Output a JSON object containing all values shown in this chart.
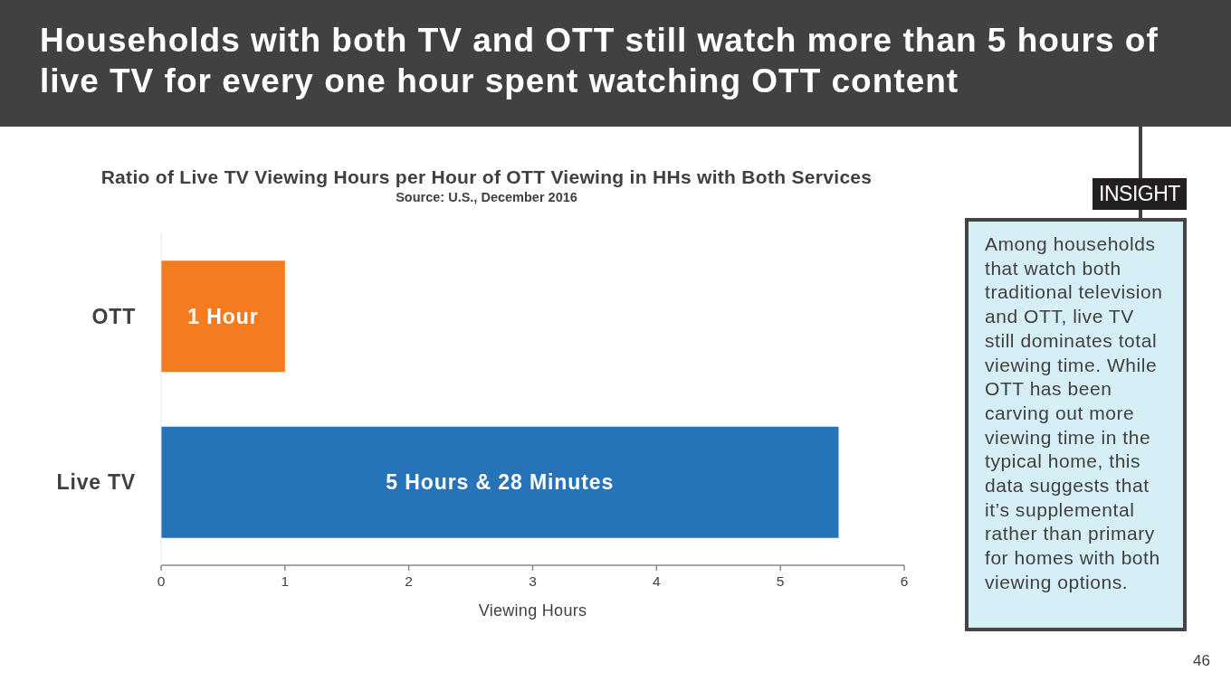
{
  "chart_data": {
    "type": "bar",
    "orientation": "horizontal",
    "title": "Households with both TV and OTT still watch more than 5 hours of live TV for every one hour spent watching OTT content",
    "subtitle": "Ratio of Live TV Viewing Hours per Hour of OTT Viewing in HHs with Both Services",
    "categories": [
      "OTT",
      "Live TV"
    ],
    "values": [
      1,
      5.47
    ],
    "colors": [
      "#f37b20",
      "#2673b8"
    ],
    "value_labels": [
      "1 Hour",
      "5 Hours & 28 Minutes"
    ],
    "xlim": [
      0,
      6
    ],
    "xticks": [
      0,
      1,
      2,
      3,
      4,
      5,
      6
    ],
    "xlabel": "Viewing Hours",
    "annotations": [
      "Source: U.S., December 2016",
      "INSIGHT",
      "Among households that watch both traditional television and OTT, live TV still dominates total viewing time. While OTT has been carving out more viewing time in the typical home, this data suggests that it’s supplemental rather than primary for homes with both viewing options.",
      "46"
    ]
  }
}
